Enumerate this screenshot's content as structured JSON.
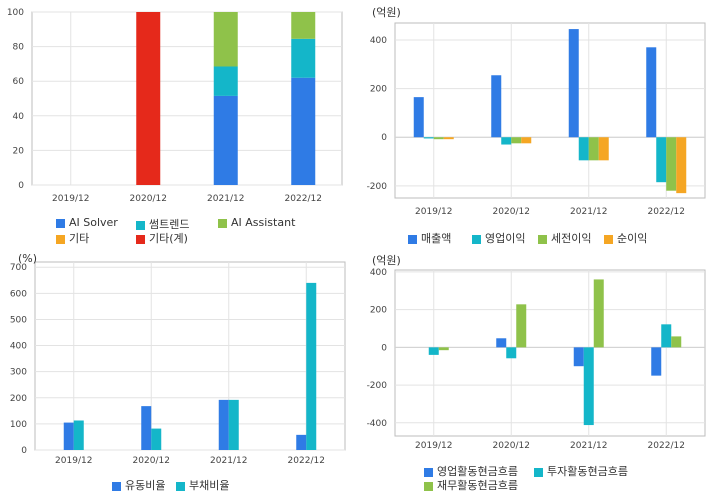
{
  "colors": {
    "blue": "#2f7be5",
    "cyan": "#14b6c9",
    "green": "#8fc24a",
    "orange": "#f5a623",
    "red": "#e5291b",
    "grid": "#e3e3e3",
    "axis": "#bdbdbd"
  },
  "chart_data": [
    {
      "type": "bar",
      "stacked": true,
      "categories": [
        "2019/12",
        "2020/12",
        "2021/12",
        "2022/12"
      ],
      "ylim": [
        0,
        100
      ],
      "yticks": [
        0,
        20,
        40,
        60,
        80,
        100
      ],
      "grid": true,
      "legend_position": "bottom",
      "series": [
        {
          "name": "AI Solver",
          "color_key": "blue",
          "values": [
            0,
            0,
            51.5,
            62
          ]
        },
        {
          "name": "썸트렌드",
          "color_key": "cyan",
          "values": [
            0,
            0,
            17,
            22.5
          ]
        },
        {
          "name": "AI Assistant",
          "color_key": "green",
          "values": [
            0,
            0,
            31.5,
            15.5
          ]
        },
        {
          "name": "기타",
          "color_key": "orange",
          "values": [
            0,
            0,
            0,
            0
          ]
        },
        {
          "name": "기타(계)",
          "color_key": "red",
          "values": [
            0,
            100,
            0,
            0
          ]
        }
      ]
    },
    {
      "type": "bar",
      "unit_label": "(억원)",
      "categories": [
        "2019/12",
        "2020/12",
        "2021/12",
        "2022/12"
      ],
      "ylim": [
        -250,
        470
      ],
      "yticks": [
        -200,
        0,
        200,
        400
      ],
      "grid": true,
      "legend_position": "bottom",
      "series": [
        {
          "name": "매출액",
          "color_key": "blue",
          "values": [
            165,
            255,
            445,
            370
          ]
        },
        {
          "name": "영업이익",
          "color_key": "cyan",
          "values": [
            -5,
            -30,
            -95,
            -185
          ]
        },
        {
          "name": "세전이익",
          "color_key": "green",
          "values": [
            -8,
            -25,
            -95,
            -220
          ]
        },
        {
          "name": "순이익",
          "color_key": "orange",
          "values": [
            -8,
            -25,
            -95,
            -230
          ]
        }
      ]
    },
    {
      "type": "bar",
      "unit_label": "(%)",
      "categories": [
        "2019/12",
        "2020/12",
        "2021/12",
        "2022/12"
      ],
      "ylim": [
        0,
        720
      ],
      "yticks": [
        0,
        100,
        200,
        300,
        400,
        500,
        600,
        700
      ],
      "grid": true,
      "legend_position": "bottom",
      "series": [
        {
          "name": "유동비율",
          "color_key": "blue",
          "values": [
            105,
            168,
            192,
            58
          ]
        },
        {
          "name": "부채비율",
          "color_key": "cyan",
          "values": [
            113,
            82,
            192,
            640
          ]
        }
      ]
    },
    {
      "type": "bar",
      "unit_label": "(억원)",
      "categories": [
        "2019/12",
        "2020/12",
        "2021/12",
        "2022/12"
      ],
      "ylim": [
        -470,
        410
      ],
      "yticks": [
        -400,
        -200,
        0,
        200,
        400
      ],
      "grid": true,
      "legend_position": "bottom",
      "series": [
        {
          "name": "영업활동현금흐름",
          "color_key": "blue",
          "values": [
            0,
            48,
            -100,
            -150
          ]
        },
        {
          "name": "투자활동현금흐름",
          "color_key": "cyan",
          "values": [
            -40,
            -58,
            -412,
            122
          ]
        },
        {
          "name": "재무활동현금흐름",
          "color_key": "green",
          "values": [
            -15,
            228,
            360,
            58
          ]
        }
      ]
    }
  ]
}
